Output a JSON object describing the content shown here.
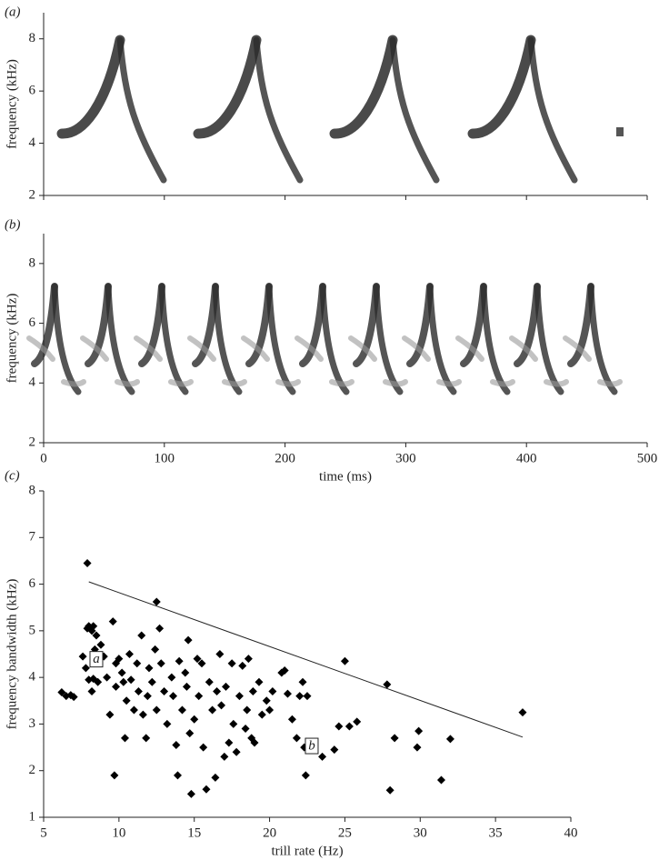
{
  "chart_data": [
    {
      "type": "spectrogram",
      "panel_label": "(a)",
      "ylabel": "frequency (kHz)",
      "xlim": [
        0,
        500
      ],
      "xticks": [
        0,
        100,
        200,
        300,
        400,
        500
      ],
      "show_xtick_labels": false,
      "ylim": [
        2,
        9
      ],
      "yticks": [
        2,
        4,
        6,
        8
      ],
      "color": "#2a2a2a"
    },
    {
      "type": "spectrogram",
      "panel_label": "(b)",
      "ylabel": "frequency (kHz)",
      "xlabel": "time (ms)",
      "xlim": [
        0,
        500
      ],
      "xticks": [
        0,
        100,
        200,
        300,
        400,
        500
      ],
      "show_xtick_labels": true,
      "ylim": [
        2,
        9
      ],
      "yticks": [
        2,
        4,
        6,
        8
      ],
      "color": "#2a2a2a"
    },
    {
      "type": "scatter",
      "panel_label": "(c)",
      "xlabel": "trill rate (Hz)",
      "ylabel": "frequency bandwidth (kHz)",
      "xlim": [
        5,
        40
      ],
      "xticks": [
        5,
        10,
        15,
        20,
        25,
        30,
        35,
        40
      ],
      "ylim": [
        1,
        8
      ],
      "yticks": [
        1,
        2,
        3,
        4,
        5,
        6,
        7,
        8
      ],
      "color": "#000000",
      "x": [
        7.9,
        12.5,
        6.2,
        6.5,
        6.8,
        7.0,
        7.6,
        7.8,
        7.9,
        8.0,
        8.2,
        8.3,
        8.5,
        8.4,
        8.0,
        8.2,
        8.3,
        8.6,
        8.8,
        9.0,
        9.2,
        9.4,
        9.6,
        9.8,
        9.7,
        9.8,
        10.0,
        10.2,
        10.3,
        10.4,
        10.5,
        10.7,
        10.8,
        11.0,
        11.2,
        11.3,
        11.5,
        11.6,
        11.8,
        11.9,
        12.0,
        12.2,
        12.4,
        12.5,
        12.7,
        12.8,
        13.0,
        13.2,
        13.5,
        13.6,
        13.8,
        13.9,
        14.0,
        14.2,
        14.4,
        14.5,
        14.6,
        14.7,
        14.8,
        15.0,
        15.2,
        15.3,
        15.5,
        15.6,
        15.8,
        16.0,
        16.2,
        16.4,
        16.5,
        16.7,
        16.8,
        17.0,
        17.1,
        17.3,
        17.5,
        17.6,
        17.8,
        18.0,
        18.2,
        18.4,
        18.5,
        18.6,
        18.8,
        18.9,
        19.0,
        19.3,
        19.5,
        19.8,
        20.0,
        20.2,
        20.8,
        21.0,
        21.2,
        21.5,
        21.8,
        22.0,
        22.2,
        22.3,
        22.4,
        22.5,
        23.5,
        24.3,
        24.6,
        25.0,
        25.3,
        25.8,
        27.8,
        28.0,
        28.3,
        29.8,
        29.9,
        31.4,
        32.0,
        36.8
      ],
      "y": [
        6.45,
        5.62,
        3.68,
        3.6,
        3.62,
        3.58,
        4.45,
        4.2,
        5.05,
        5.1,
        5.0,
        5.1,
        4.9,
        4.6,
        3.95,
        3.7,
        3.97,
        3.9,
        4.7,
        4.45,
        4.0,
        3.2,
        5.2,
        3.8,
        1.9,
        4.3,
        4.4,
        4.1,
        3.9,
        2.7,
        3.5,
        4.5,
        3.95,
        3.3,
        4.3,
        3.7,
        4.9,
        3.2,
        2.7,
        3.6,
        4.2,
        3.9,
        4.6,
        3.3,
        5.05,
        4.3,
        3.7,
        3.0,
        4.0,
        3.6,
        2.55,
        1.9,
        4.35,
        3.3,
        4.1,
        3.8,
        4.8,
        2.8,
        1.5,
        3.1,
        4.4,
        3.6,
        4.3,
        2.5,
        1.6,
        3.9,
        3.3,
        1.85,
        3.7,
        4.5,
        3.4,
        2.3,
        3.8,
        2.6,
        4.3,
        3.0,
        2.4,
        3.6,
        4.25,
        2.9,
        3.3,
        4.4,
        2.7,
        3.7,
        2.6,
        3.9,
        3.2,
        3.5,
        3.3,
        3.7,
        4.1,
        4.15,
        3.65,
        3.1,
        2.7,
        3.6,
        3.9,
        2.5,
        1.9,
        3.6,
        2.3,
        2.45,
        2.95,
        4.35,
        2.95,
        3.05,
        3.85,
        1.58,
        2.7,
        2.5,
        2.85,
        1.8,
        2.68,
        3.25
      ],
      "fit_line": {
        "x": [
          8,
          36.8
        ],
        "y": [
          6.05,
          2.72
        ]
      },
      "annotations": [
        {
          "text": "a",
          "x": 8.5,
          "y": 4.38
        },
        {
          "text": "b",
          "x": 22.8,
          "y": 2.52
        }
      ]
    }
  ]
}
